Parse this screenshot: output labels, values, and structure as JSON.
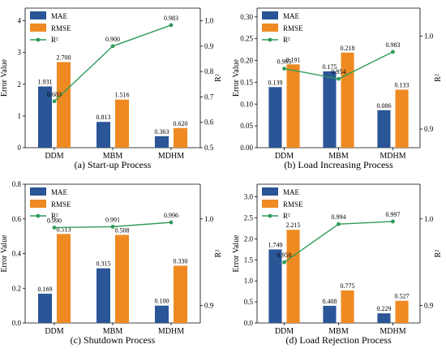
{
  "colors": {
    "mae": "#2a5596",
    "rmse": "#ef8a22",
    "r2": "#2e9b5a",
    "axis": "#000000"
  },
  "legend": {
    "mae": "MAE",
    "rmse": "RMSE",
    "r2": "R²"
  },
  "ylabel_left": "Error Value",
  "ylabel_right": "R²",
  "chart_data": [
    {
      "type": "bar",
      "title": "(a) Start-up Process",
      "categories": [
        "DDM",
        "MBM",
        "MDHM"
      ],
      "series": [
        {
          "name": "MAE",
          "values": [
            1.931,
            0.813,
            0.363
          ]
        },
        {
          "name": "RMSE",
          "values": [
            2.7,
            1.516,
            0.62
          ]
        },
        {
          "name": "R²",
          "axis": "right",
          "type": "line",
          "values": [
            0.683,
            0.9,
            0.983
          ]
        }
      ],
      "value_labels": {
        "MAE": [
          "1.931",
          "0.813",
          "0.363"
        ],
        "RMSE": [
          "2.700",
          "1.516",
          "0.620"
        ],
        "R²": [
          "0.683",
          "0.900",
          "0.983"
        ]
      },
      "ylim": [
        0,
        4.4
      ],
      "yticks": [
        0,
        1,
        2,
        3,
        4
      ],
      "ytick_labels": [
        "0",
        "1",
        "2",
        "3",
        "4"
      ],
      "y2lim": [
        0.5,
        1.05
      ],
      "y2ticks": [
        0.5,
        0.6,
        0.7,
        0.8,
        0.9,
        1.0
      ],
      "y2tick_labels": [
        "0.5",
        "0.6",
        "0.7",
        "0.8",
        "0.9",
        "1.0"
      ],
      "legend_position": "top-left",
      "grid": false
    },
    {
      "type": "bar",
      "title": "(b) Load Increasing Process",
      "categories": [
        "DDM",
        "MBM",
        "MDHM"
      ],
      "series": [
        {
          "name": "MAE",
          "values": [
            0.139,
            0.175,
            0.086
          ]
        },
        {
          "name": "RMSE",
          "values": [
            0.191,
            0.218,
            0.133
          ]
        },
        {
          "name": "R²",
          "axis": "right",
          "type": "line",
          "values": [
            0.965,
            0.954,
            0.983
          ]
        }
      ],
      "value_labels": {
        "MAE": [
          "0.139",
          "0.175",
          "0.086"
        ],
        "RMSE": [
          "0.191",
          "0.218",
          "0.133"
        ],
        "R²": [
          "0.965",
          "0.954",
          "0.983"
        ]
      },
      "ylim": [
        0,
        0.32
      ],
      "yticks": [
        0,
        0.05,
        0.1,
        0.15,
        0.2,
        0.25,
        0.3
      ],
      "ytick_labels": [
        "0.00",
        "0.05",
        "0.10",
        "0.15",
        "0.20",
        "0.25",
        "0.30"
      ],
      "y2lim": [
        0.88,
        1.03
      ],
      "y2ticks": [
        0.9,
        1.0
      ],
      "y2tick_labels": [
        "0.9",
        "1.0"
      ],
      "legend_position": "top-left",
      "grid": false
    },
    {
      "type": "bar",
      "title": "(c) Shutdown Process",
      "categories": [
        "DDM",
        "MBM",
        "MDHM"
      ],
      "series": [
        {
          "name": "MAE",
          "values": [
            0.169,
            0.315,
            0.1
          ]
        },
        {
          "name": "RMSE",
          "values": [
            0.513,
            0.508,
            0.33
          ]
        },
        {
          "name": "R²",
          "axis": "right",
          "type": "line",
          "values": [
            0.99,
            0.991,
            0.996
          ]
        }
      ],
      "value_labels": {
        "MAE": [
          "0.169",
          "0.315",
          "0.100"
        ],
        "RMSE": [
          "0.513",
          "0.508",
          "0.330"
        ],
        "R²": [
          "0.990",
          "0.991",
          "0.996"
        ]
      },
      "ylim": [
        0,
        0.8
      ],
      "yticks": [
        0,
        0.2,
        0.4,
        0.6,
        0.8
      ],
      "ytick_labels": [
        "0.0",
        "0.2",
        "0.4",
        "0.6",
        "0.8"
      ],
      "y2lim": [
        0.88,
        1.04
      ],
      "y2ticks": [
        0.9,
        1.0
      ],
      "y2tick_labels": [
        "0.9",
        "1.0"
      ],
      "legend_position": "top-left",
      "grid": false
    },
    {
      "type": "bar",
      "title": "(d) Load Rejection Process",
      "categories": [
        "DDM",
        "MBM",
        "MDHM"
      ],
      "series": [
        {
          "name": "MAE",
          "values": [
            1.749,
            0.408,
            0.229
          ]
        },
        {
          "name": "RMSE",
          "values": [
            2.215,
            0.775,
            0.527
          ]
        },
        {
          "name": "R²",
          "axis": "right",
          "type": "line",
          "values": [
            0.95,
            0.994,
            0.997
          ]
        }
      ],
      "value_labels": {
        "MAE": [
          "1.749",
          "0.408",
          "0.229"
        ],
        "RMSE": [
          "2.215",
          "0.775",
          "0.527"
        ],
        "R²": [
          "0.950",
          "0.994",
          "0.997"
        ]
      },
      "ylim": [
        0,
        3.3
      ],
      "yticks": [
        0,
        0.5,
        1.0,
        1.5,
        2.0,
        2.5,
        3.0
      ],
      "ytick_labels": [
        "0.0",
        "0.5",
        "1.0",
        "1.5",
        "2.0",
        "2.5",
        "3.0"
      ],
      "y2lim": [
        0.88,
        1.04
      ],
      "y2ticks": [
        0.9,
        1.0
      ],
      "y2tick_labels": [
        "0.9",
        "1.0"
      ],
      "legend_position": "top-left",
      "grid": false
    }
  ]
}
